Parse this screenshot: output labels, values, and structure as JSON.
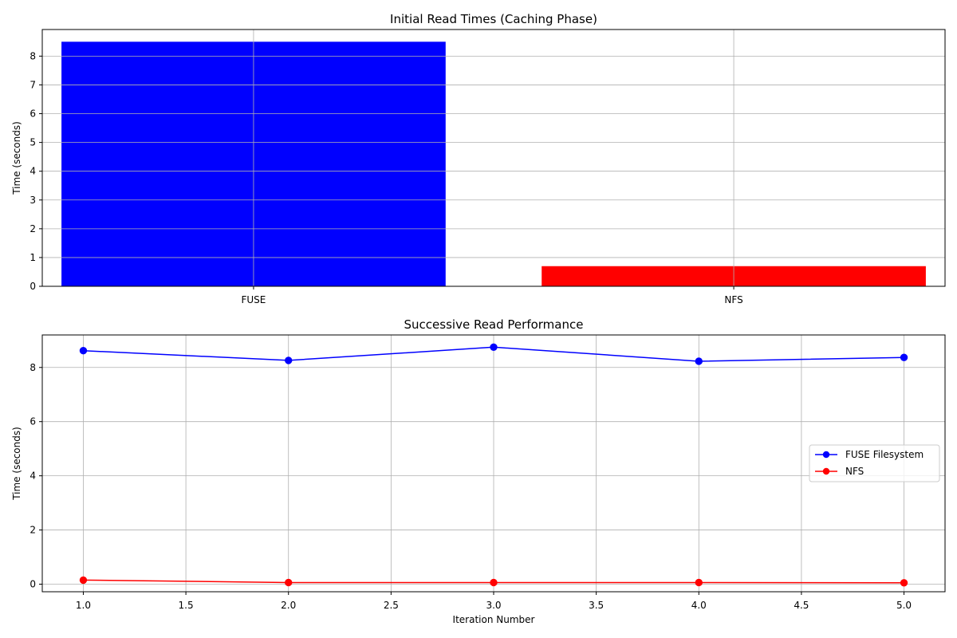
{
  "chart_data": [
    {
      "type": "bar",
      "title": "Initial Read Times (Caching Phase)",
      "xlabel": "",
      "ylabel": "Time (seconds)",
      "categories": [
        "FUSE",
        "NFS"
      ],
      "values": [
        8.5,
        0.7
      ],
      "colors": [
        "#0000ff",
        "#ff0000"
      ],
      "ylim": [
        0,
        8.925
      ],
      "yticks": [
        0,
        1,
        2,
        3,
        4,
        5,
        6,
        7,
        8
      ],
      "grid": true
    },
    {
      "type": "line",
      "title": "Successive Read Performance",
      "xlabel": "Iteration Number",
      "ylabel": "Time (seconds)",
      "x": [
        1,
        2,
        3,
        4,
        5
      ],
      "xlim": [
        0.8,
        5.2
      ],
      "ylim": [
        -0.28,
        9.2
      ],
      "xticks": [
        "1.0",
        "1.5",
        "2.0",
        "2.5",
        "3.0",
        "3.5",
        "4.0",
        "4.5",
        "5.0"
      ],
      "yticks": [
        0,
        2,
        4,
        6,
        8
      ],
      "grid": true,
      "legend_position": "center-right",
      "series": [
        {
          "name": "FUSE Filesystem",
          "color": "#0000ff",
          "marker": "circle",
          "values": [
            8.62,
            8.26,
            8.75,
            8.23,
            8.37
          ]
        },
        {
          "name": "NFS",
          "color": "#ff0000",
          "marker": "circle",
          "values": [
            0.15,
            0.06,
            0.06,
            0.06,
            0.05
          ]
        }
      ]
    }
  ]
}
